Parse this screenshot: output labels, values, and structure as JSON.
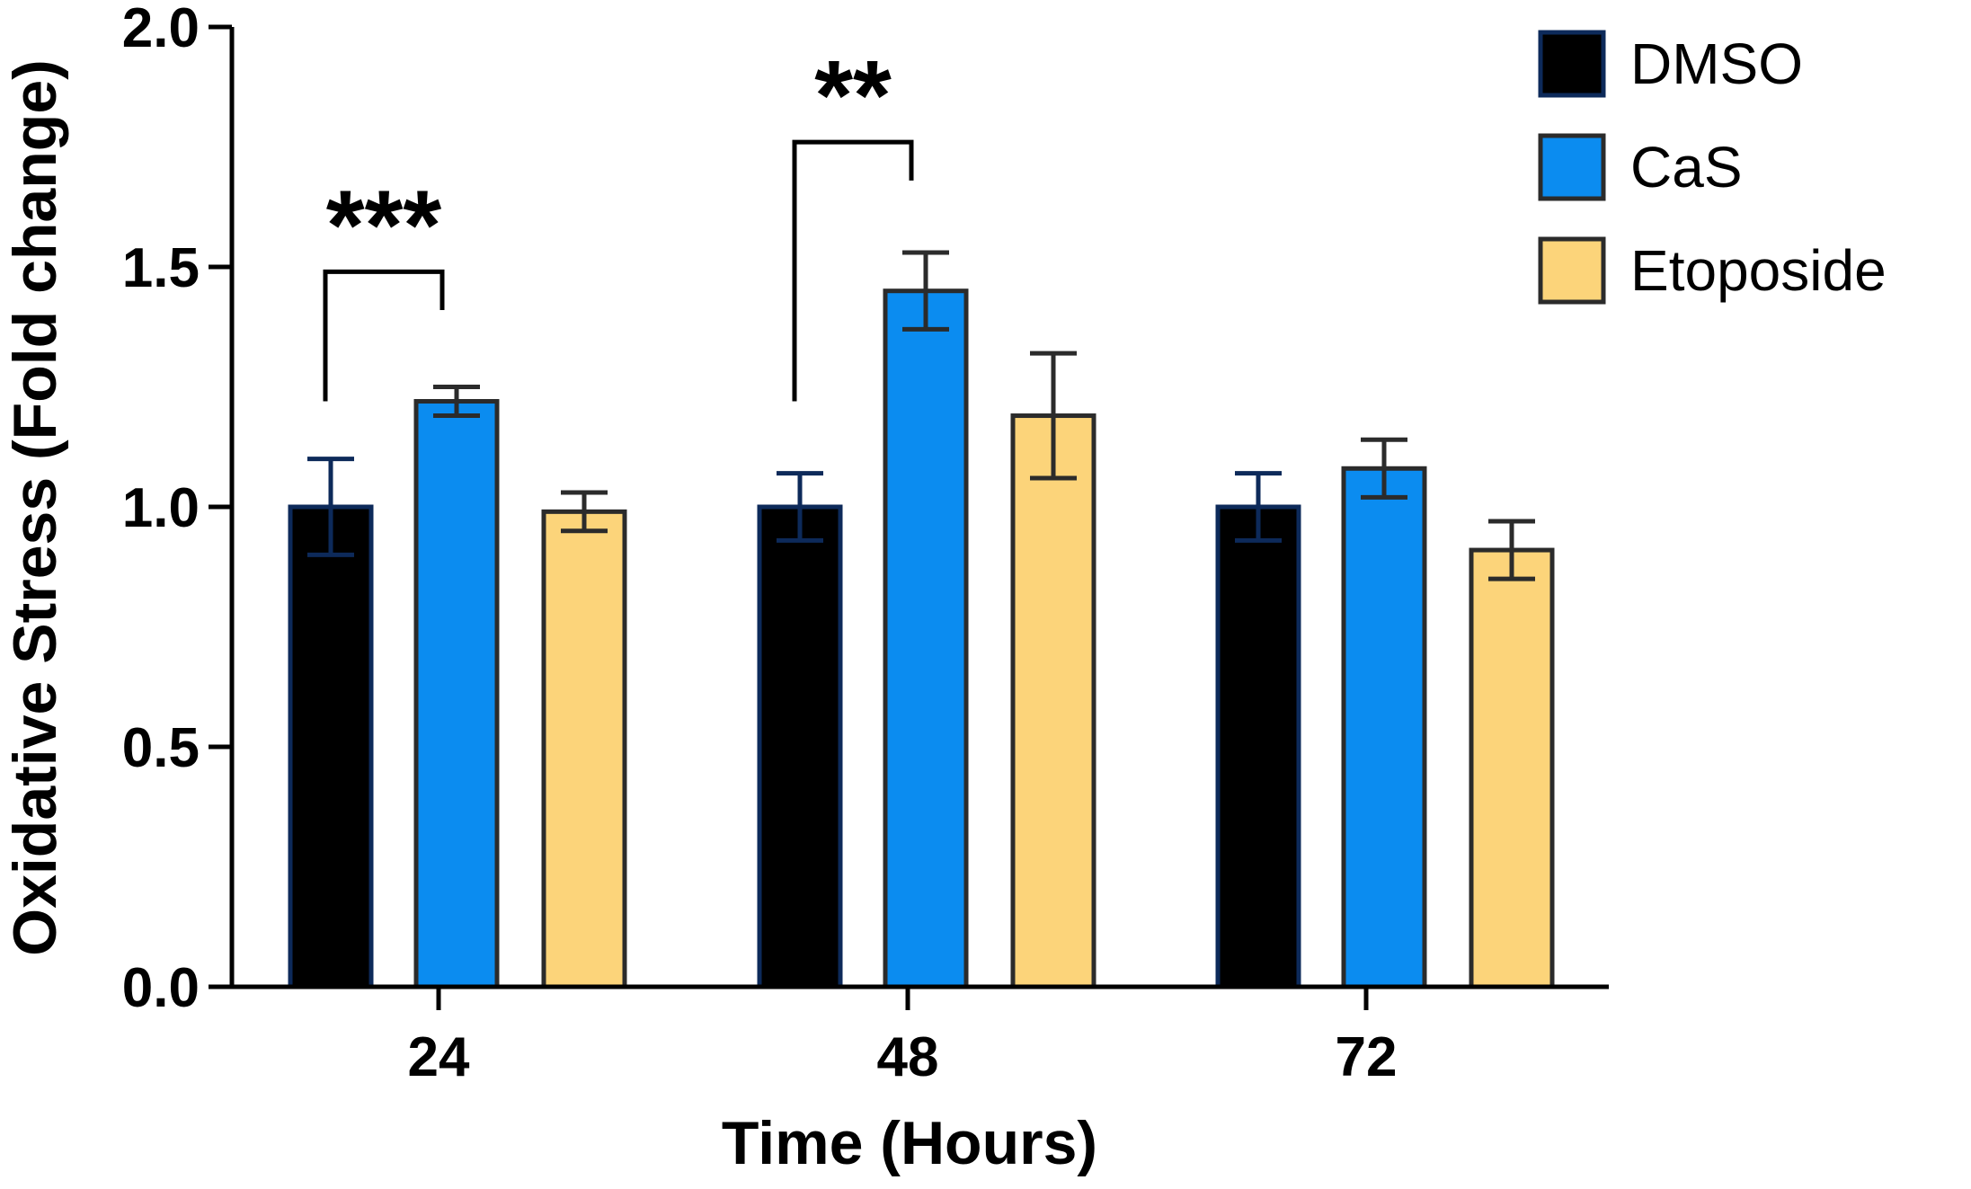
{
  "colors": {
    "DMSO": "#000000",
    "CaS": "#0b8cf0",
    "Etoposide": "#fcd47a",
    "outline_DMSO": "#0d2a5a",
    "outline_other": "#2b2b2b",
    "error_DMSO": "#0d2a5a",
    "error_other": "#2b2b2b"
  },
  "chart_data": {
    "type": "bar",
    "xlabel": "Time (Hours)",
    "ylabel": "Oxidative Stress (Fold change)",
    "categories": [
      "24",
      "48",
      "72"
    ],
    "ylim": [
      0,
      2.0
    ],
    "yticks": [
      0.0,
      0.5,
      1.0,
      1.5,
      2.0
    ],
    "ytick_labels": [
      "0.0",
      "0.5",
      "1.0",
      "1.5",
      "2.0"
    ],
    "grid": false,
    "legend": "top-right",
    "series": [
      {
        "name": "DMSO",
        "values": [
          1.0,
          1.0,
          1.0
        ],
        "errors": [
          0.1,
          0.07,
          0.07
        ]
      },
      {
        "name": "CaS",
        "values": [
          1.22,
          1.45,
          1.08
        ],
        "errors": [
          0.03,
          0.08,
          0.06
        ]
      },
      {
        "name": "Etoposide",
        "values": [
          0.99,
          1.19,
          0.91
        ],
        "errors": [
          0.04,
          0.13,
          0.06
        ]
      }
    ],
    "annotations": [
      {
        "label": "***",
        "category": "24",
        "from_series": "DMSO",
        "to_series": "CaS",
        "left_y": 1.22,
        "bracket_y": 1.49,
        "right_y": 1.41
      },
      {
        "label": "**",
        "category": "48",
        "from_series": "DMSO",
        "to_series": "CaS",
        "left_y": 1.22,
        "bracket_y": 1.76,
        "right_y": 1.68
      }
    ]
  }
}
